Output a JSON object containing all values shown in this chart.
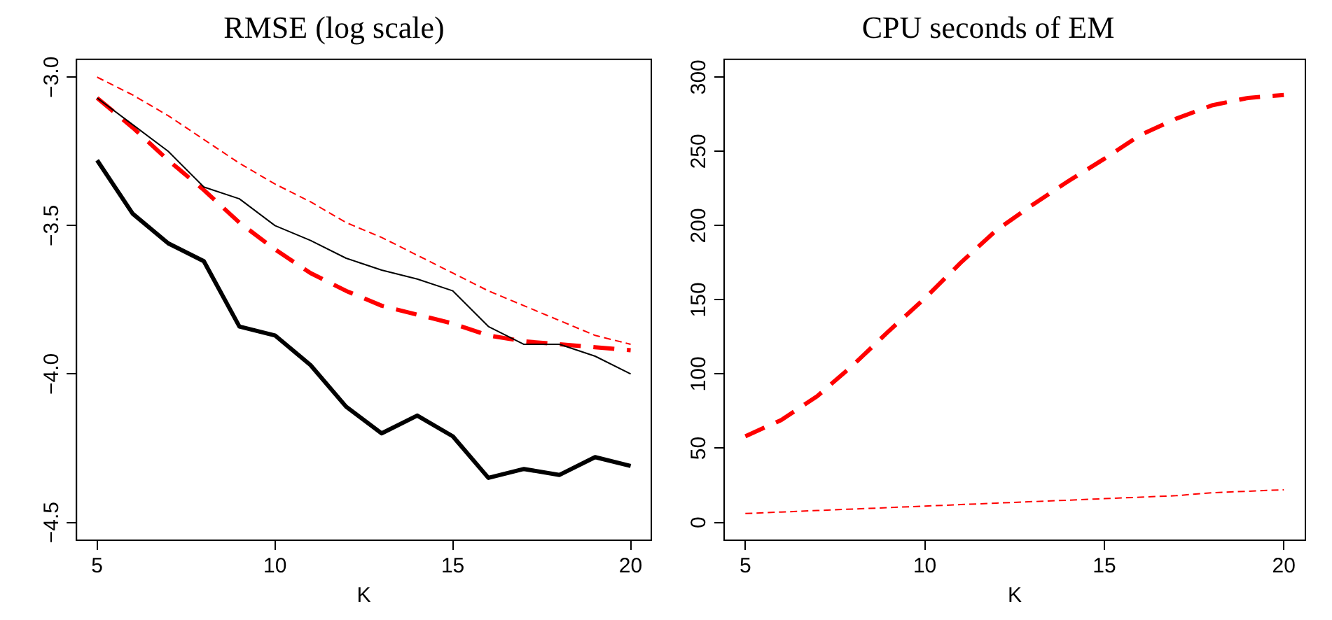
{
  "chart_data": [
    {
      "type": "line",
      "title": "RMSE (log scale)",
      "xlabel": "K",
      "x": [
        5,
        6,
        7,
        8,
        9,
        10,
        11,
        12,
        13,
        14,
        15,
        16,
        17,
        18,
        19,
        20
      ],
      "xlim": [
        4.42,
        20.58
      ],
      "xticks": [
        5,
        10,
        15,
        20
      ],
      "ylim": [
        -4.56,
        -2.94
      ],
      "yticks": [
        {
          "value": -4.5,
          "label": "−4.5"
        },
        {
          "value": -4,
          "label": "−4.0"
        },
        {
          "value": -3.5,
          "label": "−3.5"
        },
        {
          "value": -3,
          "label": "−3.0"
        }
      ],
      "grid": false,
      "legend": false,
      "marker": "none",
      "series": [
        {
          "color": "#000000",
          "line_style": "solid",
          "values": [
            -3.28,
            -3.46,
            -3.56,
            -3.62,
            -3.84,
            -3.87,
            -3.97,
            -4.11,
            -4.2,
            -4.14,
            -4.21,
            -4.35,
            -4.32,
            -4.34,
            -4.28,
            -4.31
          ]
        },
        {
          "color": "#000000",
          "line_style": "solid",
          "values": [
            -3.07,
            -3.16,
            -3.25,
            -3.37,
            -3.41,
            -3.5,
            -3.55,
            -3.61,
            -3.65,
            -3.68,
            -3.72,
            -3.84,
            -3.9,
            -3.9,
            -3.94,
            -4.0
          ]
        },
        {
          "color": "#ff0000",
          "line_style": "dashed",
          "values": [
            -3.0,
            -3.06,
            -3.13,
            -3.21,
            -3.29,
            -3.36,
            -3.42,
            -3.49,
            -3.54,
            -3.6,
            -3.66,
            -3.72,
            -3.77,
            -3.82,
            -3.87,
            -3.9
          ]
        },
        {
          "color": "#ff0000",
          "line_style": "dashed",
          "values": [
            -3.07,
            -3.17,
            -3.28,
            -3.38,
            -3.49,
            -3.58,
            -3.66,
            -3.72,
            -3.77,
            -3.8,
            -3.83,
            -3.87,
            -3.89,
            -3.9,
            -3.91,
            -3.92
          ]
        }
      ]
    },
    {
      "type": "line",
      "title": "CPU seconds of EM",
      "xlabel": "K",
      "x": [
        5,
        6,
        7,
        8,
        9,
        10,
        11,
        12,
        13,
        14,
        15,
        16,
        17,
        18,
        19,
        20
      ],
      "xlim": [
        4.41,
        20.6
      ],
      "xticks": [
        5,
        10,
        15,
        20
      ],
      "ylim": [
        -12,
        312
      ],
      "yticks": [
        0,
        50,
        100,
        150,
        200,
        250,
        300
      ],
      "grid": false,
      "legend": false,
      "marker": "none",
      "series": [
        {
          "color": "#ff0000",
          "line_style": "dashed",
          "values": [
            6,
            7,
            8,
            9,
            10,
            11,
            12,
            13,
            14,
            15,
            16,
            17,
            18,
            20,
            21,
            22
          ]
        },
        {
          "color": "#ff0000",
          "line_style": "dashed",
          "values": [
            58,
            69,
            85,
            106,
            129,
            151,
            175,
            197,
            214,
            230,
            245,
            261,
            272,
            281,
            286,
            288
          ]
        }
      ]
    }
  ]
}
